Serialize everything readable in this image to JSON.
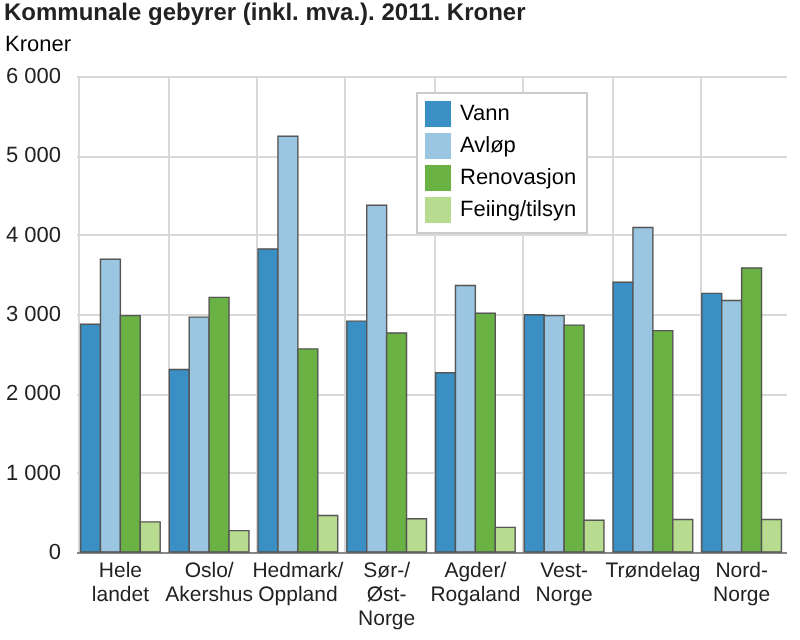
{
  "chart_data": {
    "type": "bar",
    "title": "Kommunale gebyrer (inkl. mva.). 2011. Kroner",
    "ylabel": "Kroner",
    "categories": [
      "Hele\nlandet",
      "Oslo/\nAkershus",
      "Hedmark/\nOppland",
      "Sør-/\nØst-\nNorge",
      "Agder/\nRogaland",
      "Vest-\nNorge",
      "Trøndelag",
      "Nord-\nNorge"
    ],
    "series": [
      {
        "name": "Vann",
        "color": "#3a8fc4",
        "values": [
          2870,
          2300,
          3820,
          2910,
          2260,
          2990,
          3400,
          3260
        ]
      },
      {
        "name": "Avløp",
        "color": "#9ac6e2",
        "values": [
          3690,
          2960,
          5240,
          4370,
          3360,
          2980,
          4090,
          3170
        ]
      },
      {
        "name": "Renovasjon",
        "color": "#6ab244",
        "values": [
          2980,
          3210,
          2560,
          2760,
          3010,
          2860,
          2790,
          3580
        ]
      },
      {
        "name": "Feiing/tilsyn",
        "color": "#b7dc8f",
        "values": [
          380,
          270,
          460,
          420,
          310,
          400,
          410,
          410
        ]
      }
    ],
    "ylim": [
      0,
      6000
    ],
    "yticks": [
      0,
      {
        "value": 1000,
        "label": "1 000"
      },
      {
        "value": 2000,
        "label": "2 000"
      },
      {
        "value": 3000,
        "label": "3 000"
      },
      {
        "value": 4000,
        "label": "4 000"
      },
      {
        "value": 5000,
        "label": "5 000"
      },
      {
        "value": 6000,
        "label": "6 000"
      }
    ],
    "grid": true,
    "legend": "top right"
  }
}
